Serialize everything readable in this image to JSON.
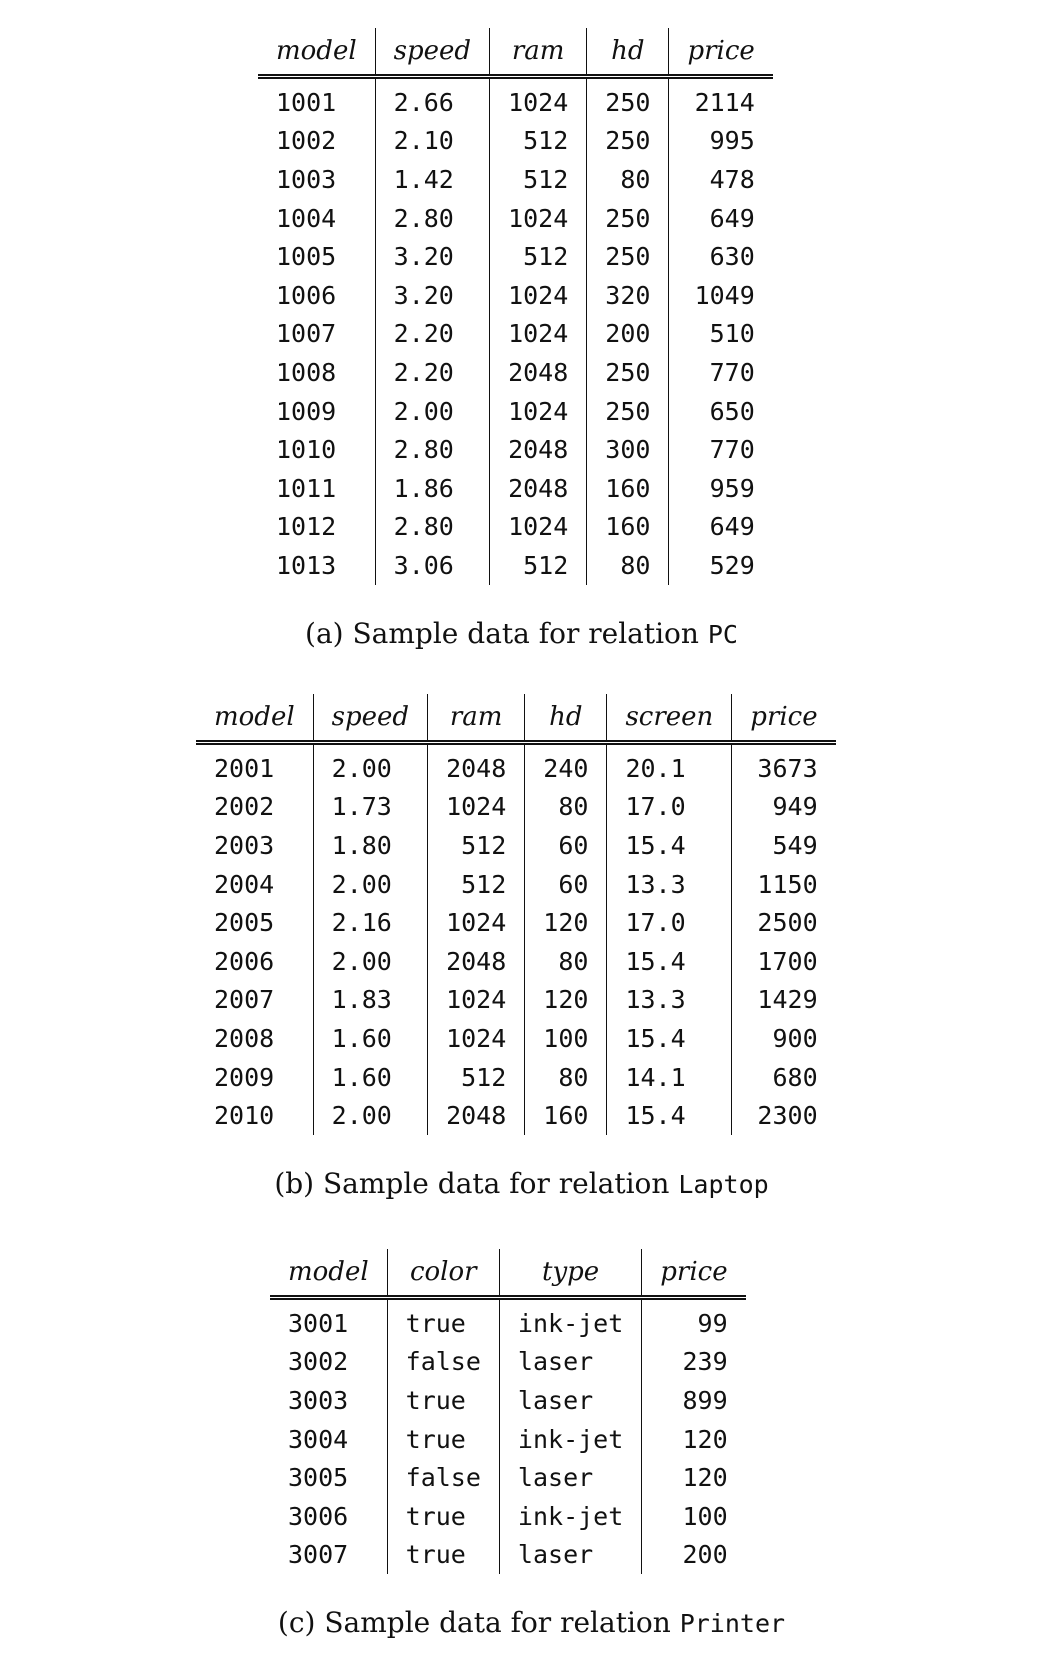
{
  "pc": {
    "headers": [
      "model",
      "speed",
      "ram",
      "hd",
      "price"
    ],
    "align": [
      "l",
      "l",
      "r",
      "r",
      "r"
    ],
    "rows": [
      [
        "1001",
        "2.66",
        "1024",
        "250",
        "2114"
      ],
      [
        "1002",
        "2.10",
        "512",
        "250",
        "995"
      ],
      [
        "1003",
        "1.42",
        "512",
        "80",
        "478"
      ],
      [
        "1004",
        "2.80",
        "1024",
        "250",
        "649"
      ],
      [
        "1005",
        "3.20",
        "512",
        "250",
        "630"
      ],
      [
        "1006",
        "3.20",
        "1024",
        "320",
        "1049"
      ],
      [
        "1007",
        "2.20",
        "1024",
        "200",
        "510"
      ],
      [
        "1008",
        "2.20",
        "2048",
        "250",
        "770"
      ],
      [
        "1009",
        "2.00",
        "1024",
        "250",
        "650"
      ],
      [
        "1010",
        "2.80",
        "2048",
        "300",
        "770"
      ],
      [
        "1011",
        "1.86",
        "2048",
        "160",
        "959"
      ],
      [
        "1012",
        "2.80",
        "1024",
        "160",
        "649"
      ],
      [
        "1013",
        "3.06",
        "512",
        "80",
        "529"
      ]
    ],
    "caption_prefix": "(a) Sample data for relation ",
    "caption_relation": "PC"
  },
  "laptop": {
    "headers": [
      "model",
      "speed",
      "ram",
      "hd",
      "screen",
      "price"
    ],
    "align": [
      "l",
      "l",
      "r",
      "r",
      "l",
      "r"
    ],
    "rows": [
      [
        "2001",
        "2.00",
        "2048",
        "240",
        "20.1",
        "3673"
      ],
      [
        "2002",
        "1.73",
        "1024",
        "80",
        "17.0",
        "949"
      ],
      [
        "2003",
        "1.80",
        "512",
        "60",
        "15.4",
        "549"
      ],
      [
        "2004",
        "2.00",
        "512",
        "60",
        "13.3",
        "1150"
      ],
      [
        "2005",
        "2.16",
        "1024",
        "120",
        "17.0",
        "2500"
      ],
      [
        "2006",
        "2.00",
        "2048",
        "80",
        "15.4",
        "1700"
      ],
      [
        "2007",
        "1.83",
        "1024",
        "120",
        "13.3",
        "1429"
      ],
      [
        "2008",
        "1.60",
        "1024",
        "100",
        "15.4",
        "900"
      ],
      [
        "2009",
        "1.60",
        "512",
        "80",
        "14.1",
        "680"
      ],
      [
        "2010",
        "2.00",
        "2048",
        "160",
        "15.4",
        "2300"
      ]
    ],
    "caption_prefix": "(b) Sample data for relation ",
    "caption_relation": "Laptop"
  },
  "printer": {
    "headers": [
      "model",
      "color",
      "type",
      "price"
    ],
    "align": [
      "l",
      "l",
      "l",
      "r"
    ],
    "rows": [
      [
        "3001",
        "true",
        "ink-jet",
        "99"
      ],
      [
        "3002",
        "false",
        "laser",
        "239"
      ],
      [
        "3003",
        "true",
        "laser",
        "899"
      ],
      [
        "3004",
        "true",
        "ink-jet",
        "120"
      ],
      [
        "3005",
        "false",
        "laser",
        "120"
      ],
      [
        "3006",
        "true",
        "ink-jet",
        "100"
      ],
      [
        "3007",
        "true",
        "laser",
        "200"
      ]
    ],
    "caption_prefix": "(c) Sample data for relation ",
    "caption_relation": "Printer"
  }
}
